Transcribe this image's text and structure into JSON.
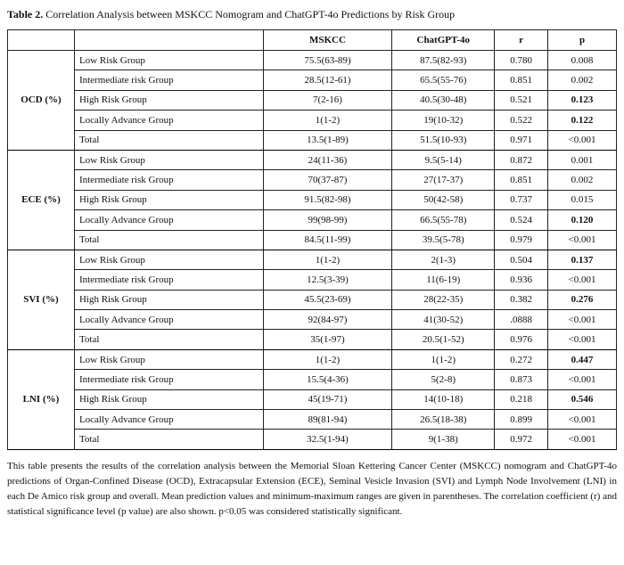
{
  "title": {
    "label": "Table 2.",
    "text": "Correlation Analysis between MSKCC Nomogram and ChatGPT-4o Predictions by Risk Group"
  },
  "table": {
    "header": [
      "MSKCC",
      "ChatGPT-4o",
      "r",
      "p"
    ],
    "groups": [
      {
        "name": "OCD (%)",
        "rows": [
          {
            "label": "Low Risk Group",
            "cells": [
              "75.5(63-89)",
              "87.5(82-93)",
              "0.780",
              "0.008"
            ]
          },
          {
            "label": "Intermediate risk Group",
            "cells": [
              "28.5(12-61)",
              "65.5(55-76)",
              "0.851",
              "0.002"
            ]
          },
          {
            "label": "High Risk Group",
            "cells": [
              "7(2-16)",
              "40.5(30-48)",
              "0.521",
              "0.123"
            ],
            "p_bold": true
          },
          {
            "label": "Locally Advance Group",
            "cells": [
              "1(1-2)",
              "19(10-32)",
              "0.522",
              "0.122"
            ],
            "p_bold": true
          },
          {
            "label": "Total",
            "cells": [
              "13.5(1-89)",
              "51.5(10-93)",
              "0.971",
              "<0.001"
            ]
          }
        ]
      },
      {
        "name": "ECE (%)",
        "rows": [
          {
            "label": "Low Risk Group",
            "cells": [
              "24(11-36)",
              "9.5(5-14)",
              "0.872",
              "0.001"
            ]
          },
          {
            "label": "Intermediate risk Group",
            "cells": [
              "70(37-87)",
              "27(17-37)",
              "0.851",
              "0.002"
            ]
          },
          {
            "label": "High Risk Group",
            "cells": [
              "91.5(82-98)",
              "50(42-58)",
              "0.737",
              "0.015"
            ]
          },
          {
            "label": "Locally Advance Group",
            "cells": [
              "99(98-99)",
              "66.5(55-78)",
              "0.524",
              "0.120"
            ],
            "p_bold": true
          },
          {
            "label": "Total",
            "cells": [
              "84.5(11-99)",
              "39.5(5-78)",
              "0.979",
              "<0.001"
            ]
          }
        ]
      },
      {
        "name": "SVI (%)",
        "rows": [
          {
            "label": "Low Risk Group",
            "cells": [
              "1(1-2)",
              "2(1-3)",
              "0.504",
              "0.137"
            ],
            "p_bold": true
          },
          {
            "label": "Intermediate risk Group",
            "cells": [
              "12.5(3-39)",
              "11(6-19)",
              "0.936",
              "<0.001"
            ]
          },
          {
            "label": "High Risk Group",
            "cells": [
              "45.5(23-69)",
              "28(22-35)",
              "0.382",
              "0.276"
            ],
            "p_bold": true
          },
          {
            "label": "Locally Advance Group",
            "cells": [
              "92(84-97)",
              "41(30-52)",
              ".0888",
              "<0.001"
            ]
          },
          {
            "label": "Total",
            "cells": [
              "35(1-97)",
              "20.5(1-52)",
              "0.976",
              "<0.001"
            ]
          }
        ]
      },
      {
        "name": "LNI (%)",
        "rows": [
          {
            "label": "Low Risk Group",
            "cells": [
              "1(1-2)",
              "1(1-2)",
              "0.272",
              "0.447"
            ],
            "p_bold": true
          },
          {
            "label": "Intermediate risk Group",
            "cells": [
              "15.5(4-36)",
              "5(2-8)",
              "0.873",
              "<0.001"
            ]
          },
          {
            "label": "High Risk Group",
            "cells": [
              "45(19-71)",
              "14(10-18)",
              "0.218",
              "0.546"
            ],
            "p_bold": true
          },
          {
            "label": "Locally Advance Group",
            "cells": [
              "89(81-94)",
              "26.5(18-38)",
              "0.899",
              "<0.001"
            ]
          },
          {
            "label": "Total",
            "cells": [
              "32.5(1-94)",
              "9(1-38)",
              "0.972",
              "<0.001"
            ]
          }
        ]
      }
    ]
  },
  "note": "This table presents the results of the correlation analysis between the Memorial Sloan Kettering Cancer Center (MSKCC) nomogram and ChatGPT-4o predictions of Organ-Confined Disease (OCD), Extracapsular Extension (ECE), Seminal Vesicle Invasion (SVI) and Lymph Node Involvement (LNI) in each De Amico risk group and overall. Mean prediction values and minimum-maximum ranges are given in parentheses. The correlation coefficient (r) and statistical significance level (p value) are also shown. p<0.05 was considered statistically significant."
}
